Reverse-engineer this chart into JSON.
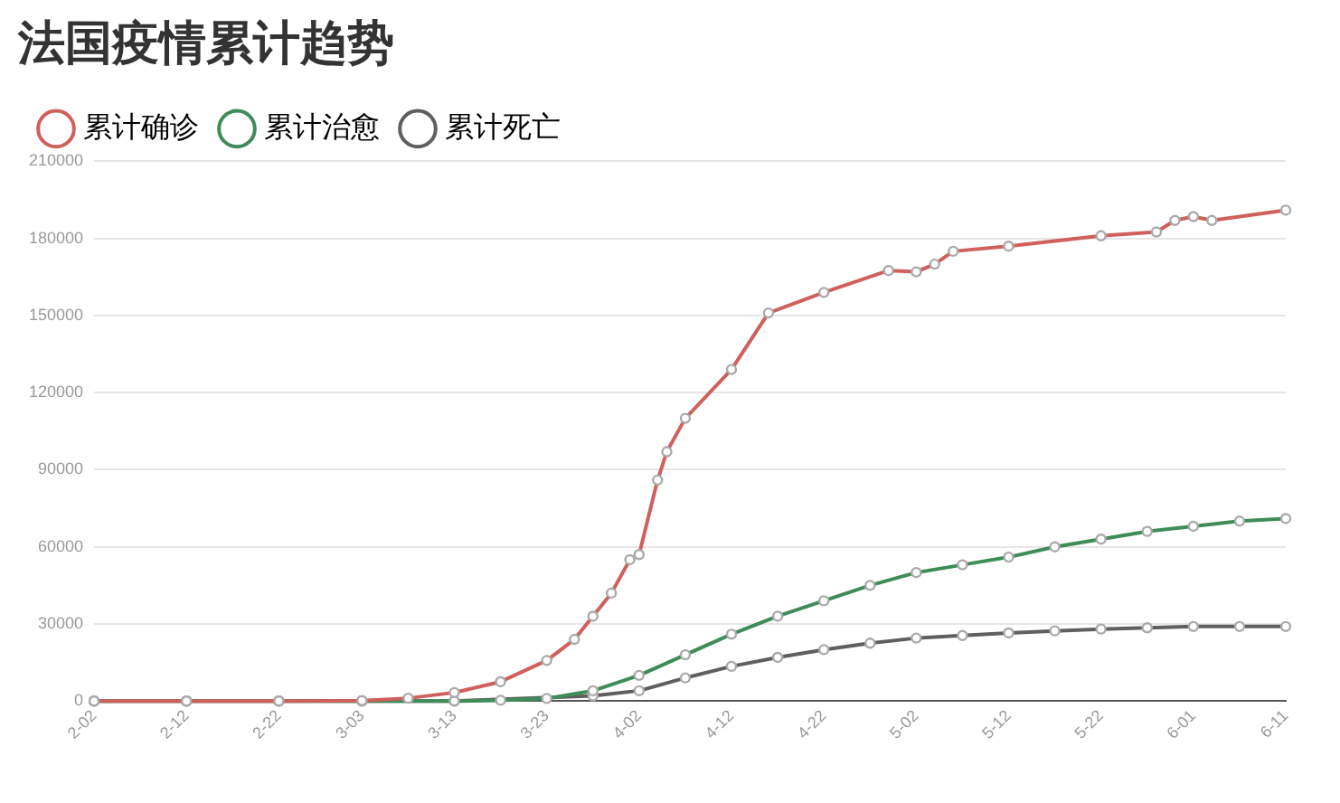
{
  "chart_data": {
    "type": "line",
    "title": "法国疫情累计趋势",
    "legend": "top left",
    "grid": "y",
    "marker": "circle",
    "line_style": "solid",
    "ylim": [
      0,
      210000
    ],
    "yticks": [
      0,
      30000,
      60000,
      90000,
      120000,
      150000,
      180000,
      210000
    ],
    "xlim": [
      "--02-02",
      "--06-11"
    ],
    "xticks": [
      {
        "value": "--02-02",
        "label": "2-02"
      },
      {
        "value": "--02-12",
        "label": "2-12"
      },
      {
        "value": "--02-22",
        "label": "2-22"
      },
      {
        "value": "--03-03",
        "label": "3-03"
      },
      {
        "value": "--03-13",
        "label": "3-13"
      },
      {
        "value": "--03-23",
        "label": "3-23"
      },
      {
        "value": "--04-02",
        "label": "4-02"
      },
      {
        "value": "--04-12",
        "label": "4-12"
      },
      {
        "value": "--04-22",
        "label": "4-22"
      },
      {
        "value": "--05-02",
        "label": "5-02"
      },
      {
        "value": "--05-12",
        "label": "5-12"
      },
      {
        "value": "--05-22",
        "label": "5-22"
      },
      {
        "value": "--06-01",
        "label": "6-01"
      },
      {
        "value": "--06-11",
        "label": "6-11"
      }
    ],
    "series": [
      {
        "name": "累计确诊",
        "color": "#d0605c",
        "x": [
          "--02-02",
          "--02-12",
          "--02-22",
          "--03-03",
          "--03-08",
          "--03-13",
          "--03-18",
          "--03-23",
          "--03-26",
          "--03-28",
          "--03-30",
          "--04-01",
          "--04-02",
          "--04-04",
          "--04-05",
          "--04-07",
          "--04-12",
          "--04-16",
          "--04-22",
          "--04-29",
          "--05-02",
          "--05-04",
          "--05-06",
          "--05-12",
          "--05-22",
          "--05-28",
          "--05-30",
          "--06-01",
          "--06-03",
          "--06-11"
        ],
        "values": [
          0,
          0,
          0,
          200,
          1100,
          3300,
          7500,
          15800,
          24000,
          33000,
          42000,
          55000,
          57000,
          86000,
          97000,
          110000,
          129000,
          151000,
          159000,
          167500,
          167000,
          170000,
          175000,
          177000,
          181000,
          182500,
          187000,
          188500,
          187000,
          191000
        ]
      },
      {
        "name": "累计治愈",
        "color": "#3f8c5a",
        "x": [
          "--02-02",
          "--02-12",
          "--02-22",
          "--03-03",
          "--03-13",
          "--03-18",
          "--03-23",
          "--03-28",
          "--04-02",
          "--04-07",
          "--04-12",
          "--04-17",
          "--04-22",
          "--04-27",
          "--05-02",
          "--05-07",
          "--05-12",
          "--05-17",
          "--05-22",
          "--05-27",
          "--06-01",
          "--06-06",
          "--06-11"
        ],
        "values": [
          0,
          0,
          0,
          0,
          0,
          300,
          1000,
          4000,
          10000,
          18000,
          26000,
          33000,
          39000,
          45000,
          50000,
          53000,
          56000,
          60000,
          63000,
          66000,
          68000,
          70000,
          71000
        ]
      },
      {
        "name": "累计死亡",
        "color": "#5f5f5f",
        "x": [
          "--02-02",
          "--02-12",
          "--02-22",
          "--03-03",
          "--03-13",
          "--03-18",
          "--03-23",
          "--03-28",
          "--04-02",
          "--04-07",
          "--04-12",
          "--04-17",
          "--04-22",
          "--04-27",
          "--05-02",
          "--05-07",
          "--05-12",
          "--05-17",
          "--05-22",
          "--05-27",
          "--06-01",
          "--06-06",
          "--06-11"
        ],
        "values": [
          0,
          0,
          0,
          0,
          0,
          null,
          null,
          2000,
          4000,
          9000,
          13500,
          17000,
          20000,
          22500,
          24500,
          25500,
          26500,
          27300,
          28000,
          28500,
          29000,
          29000,
          29000
        ]
      }
    ]
  }
}
